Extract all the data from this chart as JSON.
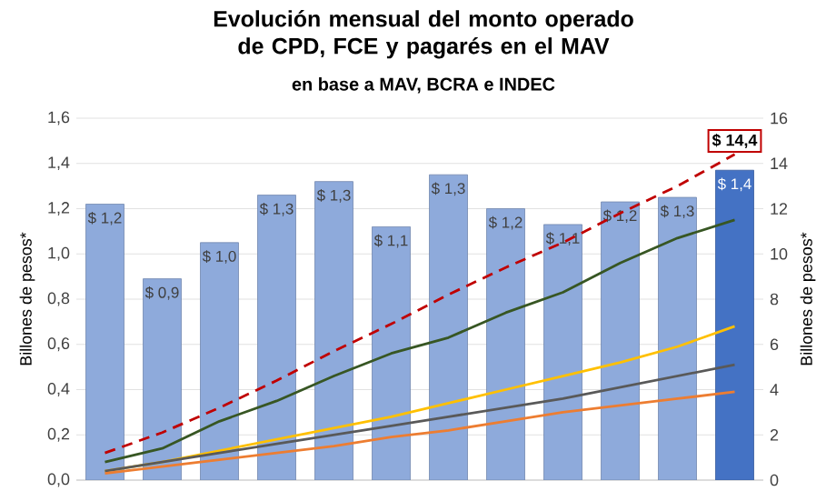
{
  "chart_data": {
    "type": "bar",
    "title": "Evolución mensual del monto operado de CPD, FCE y pagarés en el MAV",
    "subtitle": "en base a MAV, BCRA e INDEC",
    "ylabel": "Billones de pesos*",
    "y2label": "Billones de pesos*",
    "categories": [
      null,
      null,
      null,
      null,
      null,
      null,
      null,
      null,
      null,
      null,
      null,
      null
    ],
    "series": [
      {
        "values": [
          1.22,
          0.89,
          1.05,
          1.26,
          1.32,
          1.12,
          1.35,
          1.2,
          1.13,
          1.23,
          1.25,
          1.37
        ],
        "colors": [
          "#8eaadb",
          "#8eaadb",
          "#8eaadb",
          "#8eaadb",
          "#8eaadb",
          "#8eaadb",
          "#8eaadb",
          "#8eaadb",
          "#8eaadb",
          "#8eaadb",
          "#8eaadb",
          "#4472c4"
        ],
        "value_labels": [
          "$ 1,2",
          "$ 0,9",
          "$ 1,0",
          "$ 1,3",
          "$ 1,3",
          "$ 1,1",
          "$ 1,3",
          "$ 1,2",
          "$ 1,1",
          "$ 1,2",
          "$ 1,3",
          "$ 1,4"
        ]
      },
      {
        "type": "line",
        "axis": "y2",
        "color": "#c00000",
        "line_style": "dashed",
        "values": [
          1.2,
          2.1,
          3.2,
          4.4,
          5.7,
          6.9,
          8.2,
          9.4,
          10.5,
          11.8,
          13.0,
          14.4
        ]
      },
      {
        "type": "line",
        "axis": "y2",
        "color": "#375623",
        "values": [
          0.8,
          1.4,
          2.6,
          3.5,
          4.6,
          5.6,
          6.3,
          7.4,
          8.3,
          9.6,
          10.7,
          11.5
        ]
      },
      {
        "type": "line",
        "axis": "y2",
        "color": "#ffc000",
        "values": [
          0.4,
          0.8,
          1.3,
          1.8,
          2.3,
          2.8,
          3.4,
          4.0,
          4.6,
          5.2,
          5.9,
          6.8
        ]
      },
      {
        "type": "line",
        "axis": "y2",
        "color": "#595959",
        "values": [
          0.4,
          0.8,
          1.2,
          1.6,
          2.0,
          2.4,
          2.8,
          3.2,
          3.6,
          4.1,
          4.6,
          5.1
        ]
      },
      {
        "type": "line",
        "axis": "y2",
        "color": "#ed7d31",
        "values": [
          0.3,
          0.6,
          0.9,
          1.2,
          1.5,
          1.9,
          2.2,
          2.6,
          3.0,
          3.3,
          3.6,
          3.9
        ]
      }
    ],
    "ylim": [
      0,
      1.6
    ],
    "yticks": [
      {
        "value": 0,
        "label": "0,0"
      },
      {
        "value": 0.2,
        "label": "0,2"
      },
      {
        "value": 0.4,
        "label": "0,4"
      },
      {
        "value": 0.6,
        "label": "0,6"
      },
      {
        "value": 0.8,
        "label": "0,8"
      },
      {
        "value": 1.0,
        "label": "1,0"
      },
      {
        "value": 1.2,
        "label": "1,2"
      },
      {
        "value": 1.4,
        "label": "1,4"
      },
      {
        "value": 1.6,
        "label": "1,6"
      }
    ],
    "y2lim": [
      0,
      16
    ],
    "y2ticks": [
      0,
      2,
      4,
      6,
      8,
      10,
      12,
      14,
      16
    ],
    "grid": "y",
    "annotations": [
      "$ 14,4"
    ]
  }
}
